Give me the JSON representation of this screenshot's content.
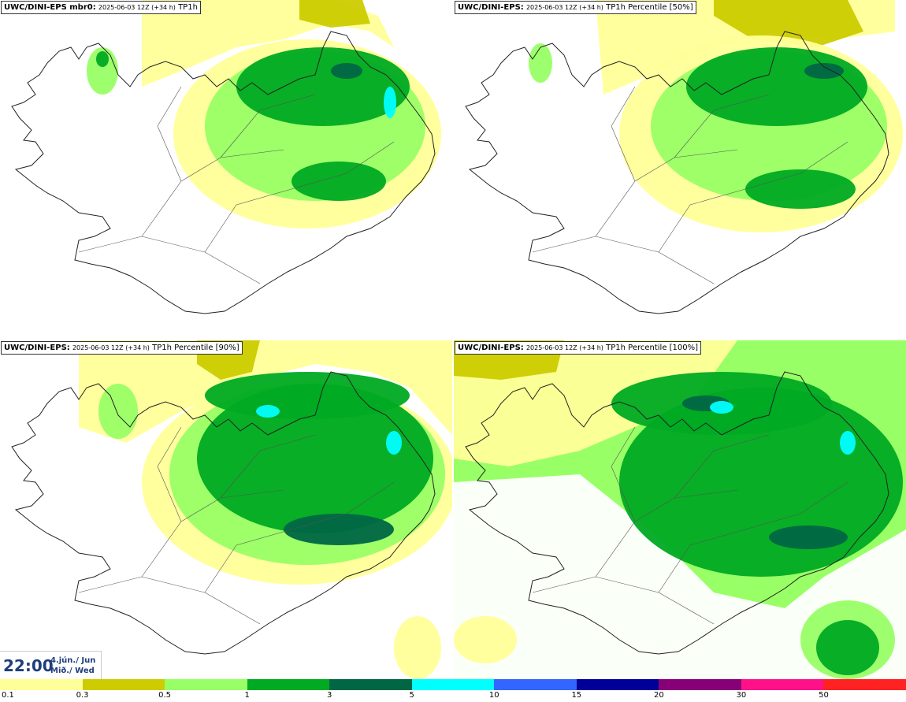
{
  "panels": [
    {
      "model": "UWC/DINI-EPS mbr0",
      "suffix": ":",
      "run": "2025-06-03 12Z (+34 h)",
      "field": "TP1h"
    },
    {
      "model": "UWC/DINI-EPS",
      "suffix": ":",
      "run": "2025-06-03 12Z (+34 h)",
      "field": "TP1h Percentile [50%]"
    },
    {
      "model": "UWC/DINI-EPS",
      "suffix": ":",
      "run": "2025-06-03 12Z (+34 h)",
      "field": "TP1h Percentile [90%]"
    },
    {
      "model": "UWC/DINI-EPS",
      "suffix": ":",
      "run": "2025-06-03 12Z (+34 h)",
      "field": "TP1h Percentile [100%]"
    }
  ],
  "valid_time": {
    "time": "22:00",
    "date_line1": "4.jún./ Jun",
    "date_line2": "Mið./ Wed"
  },
  "legend": {
    "colors": [
      "#ffff99",
      "#cccc00",
      "#99ff66",
      "#00aa22",
      "#006644",
      "#00ffff",
      "#3366ff",
      "#000099",
      "#880077",
      "#ff1188",
      "#ff2222"
    ],
    "ticks": [
      "0.1",
      "0.3",
      "0.5",
      "1",
      "3",
      "5",
      "10",
      "15",
      "20",
      "30",
      "50"
    ]
  }
}
